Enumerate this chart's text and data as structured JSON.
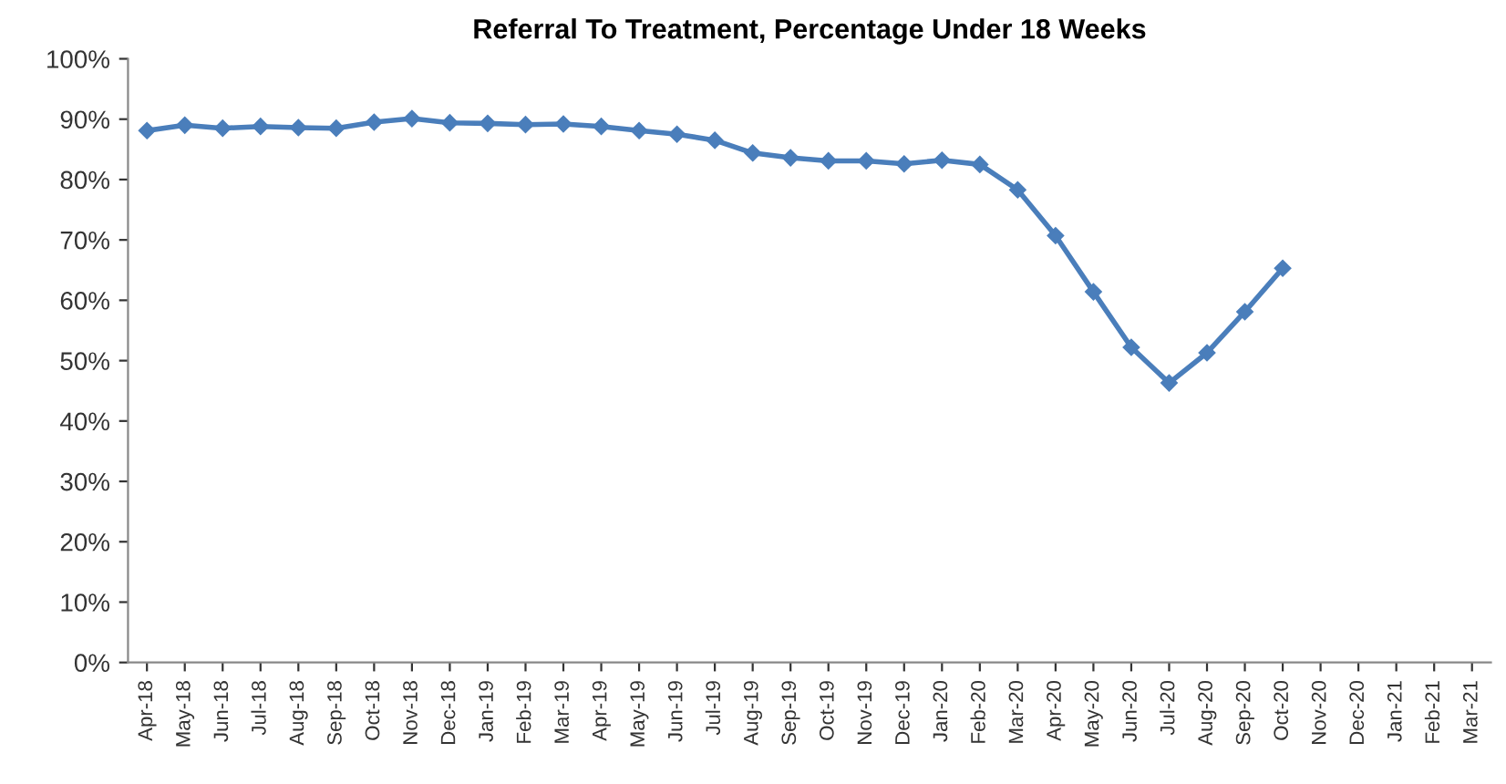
{
  "chart_data": {
    "type": "line",
    "title": "Referral To Treatment, Percentage Under 18 Weeks",
    "categories": [
      "Apr-18",
      "May-18",
      "Jun-18",
      "Jul-18",
      "Aug-18",
      "Sep-18",
      "Oct-18",
      "Nov-18",
      "Dec-18",
      "Jan-19",
      "Feb-19",
      "Mar-19",
      "Apr-19",
      "May-19",
      "Jun-19",
      "Jul-19",
      "Aug-19",
      "Sep-19",
      "Oct-19",
      "Nov-19",
      "Dec-19",
      "Jan-20",
      "Feb-20",
      "Mar-20",
      "Apr-20",
      "May-20",
      "Jun-20",
      "Jul-20",
      "Aug-20",
      "Sep-20",
      "Oct-20",
      "Nov-20",
      "Dec-20",
      "Jan-21",
      "Feb-21",
      "Mar-21"
    ],
    "series": [
      {
        "color": "#4a7ebb",
        "values": [
          88.1,
          89,
          88.5,
          88.8,
          88.6,
          88.5,
          89.5,
          90.1,
          89.4,
          89.3,
          89.1,
          89.2,
          88.8,
          88.1,
          87.5,
          86.5,
          84.4,
          83.6,
          83.1,
          83.1,
          82.6,
          83.2,
          82.5,
          78.3,
          70.7,
          61.4,
          52.2,
          46.3,
          51.3,
          58.1,
          65.3,
          null,
          null,
          null,
          null,
          null
        ]
      }
    ],
    "ylim": [
      0,
      100
    ],
    "yticks": [
      {
        "value": 0,
        "label": "0%"
      },
      {
        "value": 10,
        "label": "10%"
      },
      {
        "value": 20,
        "label": "20%"
      },
      {
        "value": 30,
        "label": "30%"
      },
      {
        "value": 40,
        "label": "40%"
      },
      {
        "value": 50,
        "label": "50%"
      },
      {
        "value": 60,
        "label": "60%"
      },
      {
        "value": 70,
        "label": "70%"
      },
      {
        "value": 80,
        "label": "80%"
      },
      {
        "value": 90,
        "label": "90%"
      },
      {
        "value": 100,
        "label": "100%"
      }
    ],
    "marker": "diamond",
    "line_style": "solid",
    "grid": false,
    "legend": false
  }
}
